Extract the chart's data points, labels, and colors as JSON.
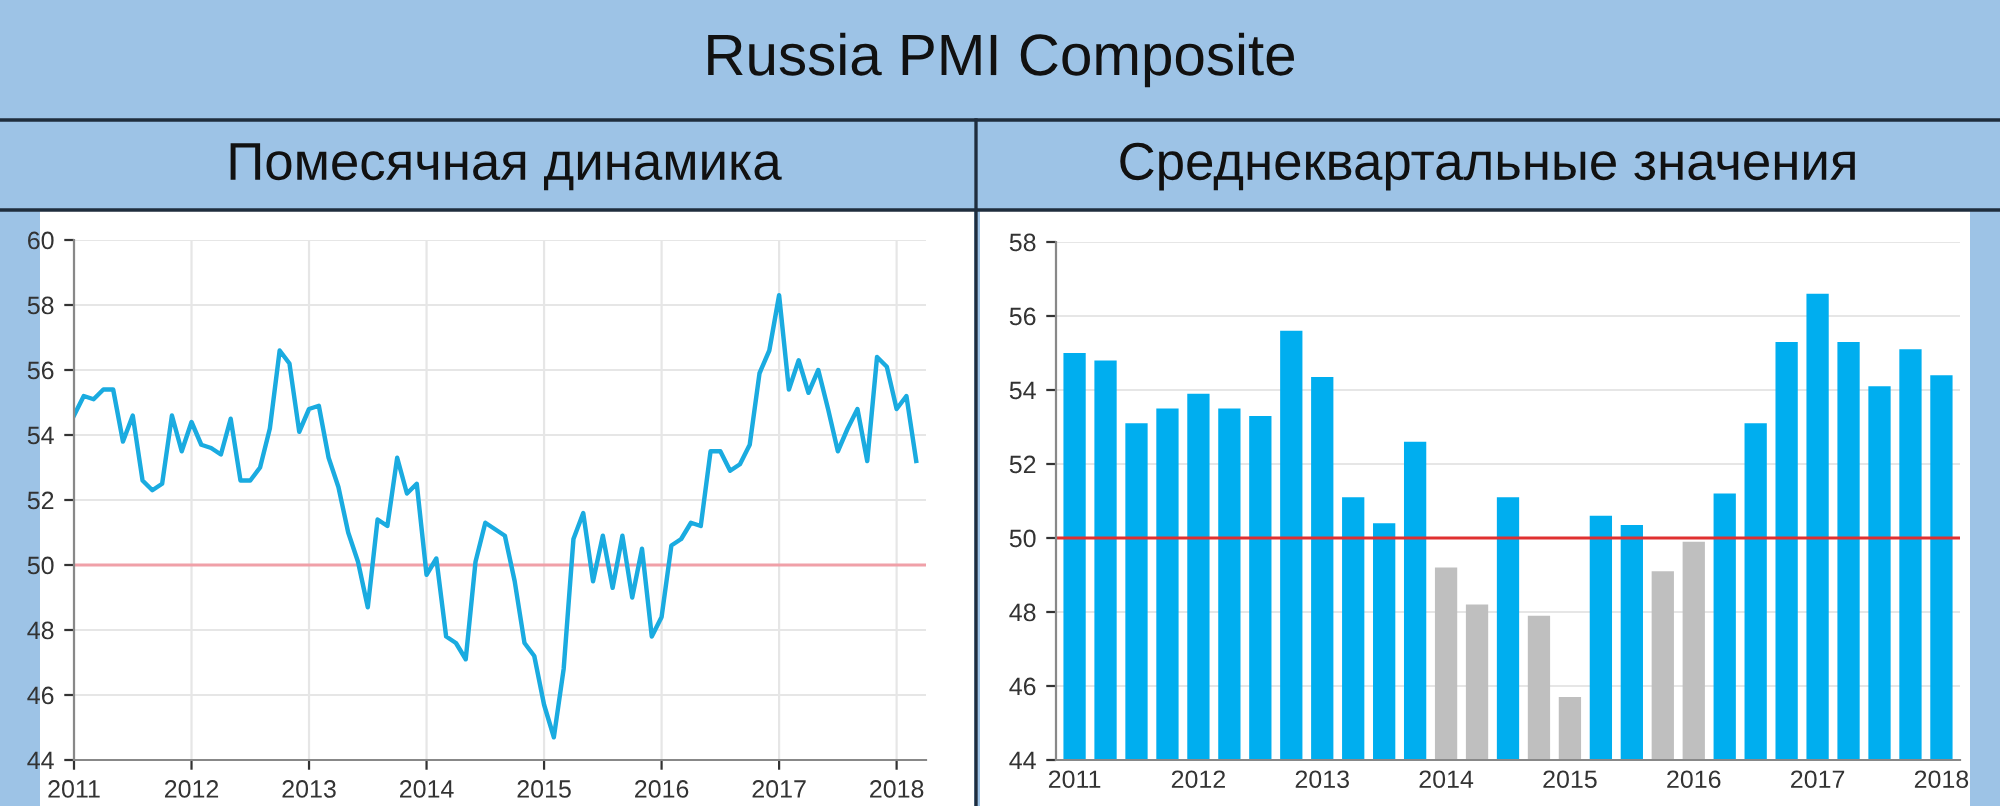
{
  "chart_data": [
    {
      "type": "line",
      "title": "Russia PMI Composite",
      "subtitle": "Помесячная динамика",
      "x": [
        "2011-01",
        "2011-02",
        "2011-03",
        "2011-04",
        "2011-05",
        "2011-06",
        "2011-07",
        "2011-08",
        "2011-09",
        "2011-10",
        "2011-11",
        "2011-12",
        "2012-01",
        "2012-02",
        "2012-03",
        "2012-04",
        "2012-05",
        "2012-06",
        "2012-07",
        "2012-08",
        "2012-09",
        "2012-10",
        "2012-11",
        "2012-12",
        "2013-01",
        "2013-02",
        "2013-03",
        "2013-04",
        "2013-05",
        "2013-06",
        "2013-07",
        "2013-08",
        "2013-09",
        "2013-10",
        "2013-11",
        "2013-12",
        "2014-01",
        "2014-02",
        "2014-03",
        "2014-04",
        "2014-05",
        "2014-06",
        "2014-07",
        "2014-08",
        "2014-09",
        "2014-10",
        "2014-11",
        "2014-12",
        "2015-01",
        "2015-02",
        "2015-03",
        "2015-04",
        "2015-05",
        "2015-06",
        "2015-07",
        "2015-08",
        "2015-09",
        "2015-10",
        "2015-11",
        "2015-12",
        "2016-01",
        "2016-02",
        "2016-03",
        "2016-04",
        "2016-05",
        "2016-06",
        "2016-07",
        "2016-08",
        "2016-09",
        "2016-10",
        "2016-11",
        "2016-12",
        "2017-01",
        "2017-02",
        "2017-03",
        "2017-04",
        "2017-05",
        "2017-06",
        "2017-07",
        "2017-08",
        "2017-09",
        "2017-10",
        "2017-11",
        "2017-12",
        "2018-01",
        "2018-02",
        "2018-03"
      ],
      "series": [
        {
          "color": "#1aabe0",
          "values": [
            54.6,
            55.2,
            55.1,
            55.4,
            55.4,
            53.8,
            54.6,
            52.6,
            52.3,
            52.5,
            54.6,
            53.5,
            54.4,
            53.7,
            53.6,
            53.4,
            54.5,
            52.6,
            52.6,
            53.0,
            54.2,
            56.6,
            56.2,
            54.1,
            54.8,
            54.9,
            53.3,
            52.4,
            51.0,
            50.1,
            48.7,
            51.4,
            51.2,
            53.3,
            52.2,
            52.5,
            49.7,
            50.2,
            47.8,
            47.6,
            47.1,
            50.1,
            51.3,
            51.1,
            50.9,
            49.5,
            47.6,
            47.2,
            45.7,
            44.7,
            46.8,
            50.8,
            51.6,
            49.5,
            50.9,
            49.3,
            50.9,
            49.0,
            50.5,
            47.8,
            48.4,
            50.6,
            50.8,
            51.3,
            51.2,
            53.5,
            53.5,
            52.9,
            53.1,
            53.7,
            55.9,
            56.6,
            58.3,
            55.4,
            56.3,
            55.3,
            56.0,
            54.8,
            53.5,
            54.2,
            54.8,
            53.2,
            56.4,
            56.1,
            54.8,
            55.2,
            53.2
          ]
        }
      ],
      "xlim": [
        "2011-01",
        "2018-04"
      ],
      "xticks": [
        "2011",
        "2012",
        "2013",
        "2014",
        "2015",
        "2016",
        "2017",
        "2018"
      ],
      "ylim": [
        44,
        60
      ],
      "yticks": [
        44,
        46,
        48,
        50,
        52,
        54,
        56,
        58,
        60
      ],
      "grid": true,
      "marker": "none",
      "line_style": "solid",
      "legend": false,
      "ref_lines": [
        {
          "axis": "y",
          "value": 50,
          "color": "#f0a0a8"
        }
      ]
    },
    {
      "type": "bar",
      "subtitle": "Среднеквартальные значения",
      "categories": [
        "2011",
        null,
        null,
        null,
        "2012",
        null,
        null,
        null,
        "2013",
        null,
        null,
        null,
        "2014",
        null,
        null,
        null,
        "2015",
        null,
        null,
        null,
        "2016",
        null,
        null,
        null,
        "2017",
        null,
        null,
        null,
        "2018"
      ],
      "values": [
        55.0,
        54.8,
        53.1,
        53.5,
        53.9,
        53.5,
        53.3,
        55.6,
        54.35,
        51.1,
        50.4,
        52.6,
        49.2,
        48.2,
        51.1,
        47.9,
        45.7,
        50.6,
        50.35,
        49.1,
        49.9,
        51.2,
        53.1,
        55.3,
        56.6,
        55.3,
        54.1,
        55.1,
        54.4
      ],
      "colors": [
        "#00aeef",
        "#00aeef",
        "#00aeef",
        "#00aeef",
        "#00aeef",
        "#00aeef",
        "#00aeef",
        "#00aeef",
        "#00aeef",
        "#00aeef",
        "#00aeef",
        "#00aeef",
        "#bfbfbf",
        "#bfbfbf",
        "#00aeef",
        "#bfbfbf",
        "#bfbfbf",
        "#00aeef",
        "#00aeef",
        "#bfbfbf",
        "#bfbfbf",
        "#00aeef",
        "#00aeef",
        "#00aeef",
        "#00aeef",
        "#00aeef",
        "#00aeef",
        "#00aeef",
        "#00aeef"
      ],
      "ylim": [
        44,
        58
      ],
      "yticks": [
        44,
        46,
        48,
        50,
        52,
        54,
        56,
        58
      ],
      "grid": "y",
      "legend": false,
      "ref_lines": [
        {
          "axis": "y",
          "value": 50,
          "color": "#e03030"
        }
      ]
    }
  ]
}
